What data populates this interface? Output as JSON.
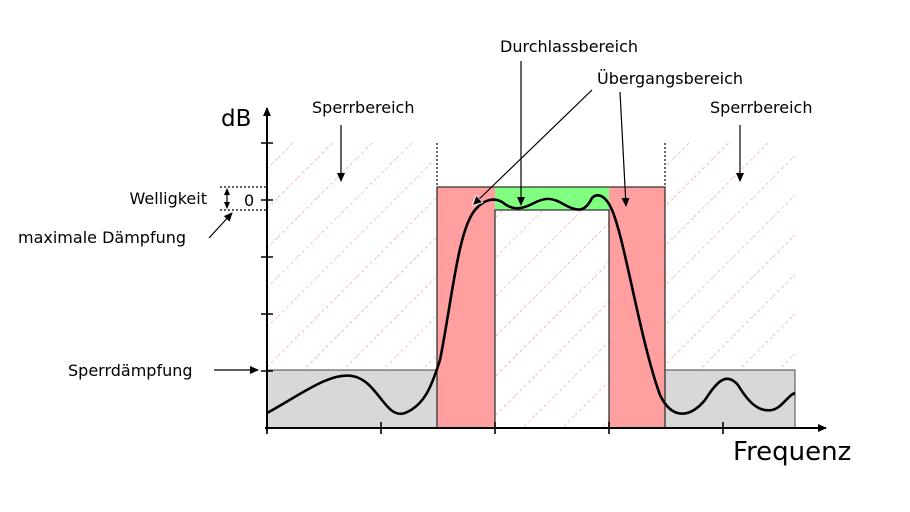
{
  "axes": {
    "y_label": "dB",
    "x_label": "Frequenz",
    "zero_tick": "0"
  },
  "labels": {
    "stopband_left": "Sperrbereich",
    "stopband_right": "Sperrbereich",
    "passband": "Durchlassbereich",
    "transition": "Übergangsbereich",
    "ripple": "Welligkeit",
    "max_attenuation": "maximale Dämpfung",
    "stopband_attenuation": "Sperrdämpfung"
  },
  "colors": {
    "transition_band": "#ff9f9f",
    "passband": "#80ff80",
    "stopband_fill": "#d8d8d8",
    "hatch": "#ff8080"
  }
}
